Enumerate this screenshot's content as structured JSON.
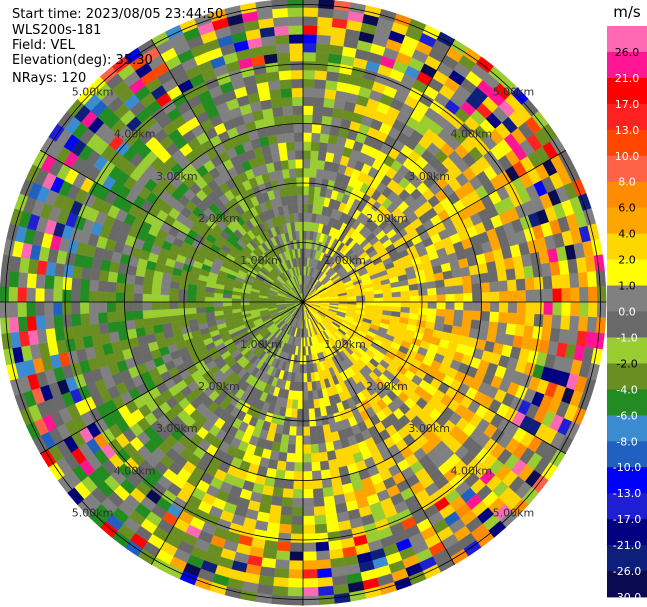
{
  "header": {
    "start_time": "Start time: 2023/08/05 23:44:50",
    "instrument": "WLS200s-181",
    "field": "Field: VEL",
    "elevation": "Elevation(deg): 35.30",
    "nrays": "NRays: 120"
  },
  "chart_data": {
    "type": "heatmap",
    "projection": "polar-ppi",
    "field": "VEL",
    "units": "m/s",
    "n_rays": 120,
    "elevation_deg": 35.3,
    "range_rings_km": [
      1,
      2,
      3,
      4,
      5
    ],
    "ring_labels": [
      "1.00km",
      "2.00km",
      "3.00km",
      "4.00km",
      "5.00km"
    ],
    "spoke_angles_deg": [
      0,
      30,
      60,
      90,
      120,
      150,
      180,
      210,
      240,
      270,
      300,
      330
    ],
    "max_range_km": 5.1,
    "colorbar": {
      "label": "m/s",
      "boundaries": [
        -30,
        -26,
        -21,
        -17,
        -13,
        -10,
        -8,
        -6,
        -4,
        -2,
        -1,
        0,
        1,
        2,
        4,
        6,
        8,
        10,
        13,
        17,
        21,
        26,
        30
      ],
      "tick_labels": [
        "26.0",
        "21.0",
        "17.0",
        "13.0",
        "10.0",
        "8.0",
        "6.0",
        "4.0",
        "2.0",
        "1.0",
        "0.0",
        "-1.0",
        "-2.0",
        "-4.0",
        "-6.0",
        "-8.0",
        "-10.0",
        "-13.0",
        "-17.0",
        "-21.0",
        "-26.0",
        "-30.0"
      ],
      "colors": [
        "#0a0a50",
        "#0d1f7a",
        "#000080",
        "#1e1ed2",
        "#0000ff",
        "#2060c0",
        "#3a8bd0",
        "#228b22",
        "#6b8e23",
        "#9acd32",
        "#696969",
        "#808080",
        "#ffff00",
        "#ffd700",
        "#ffa500",
        "#ff8c00",
        "#ff6347",
        "#ff4500",
        "#ff2020",
        "#ff0000",
        "#ff1493",
        "#ff69b4"
      ]
    }
  }
}
